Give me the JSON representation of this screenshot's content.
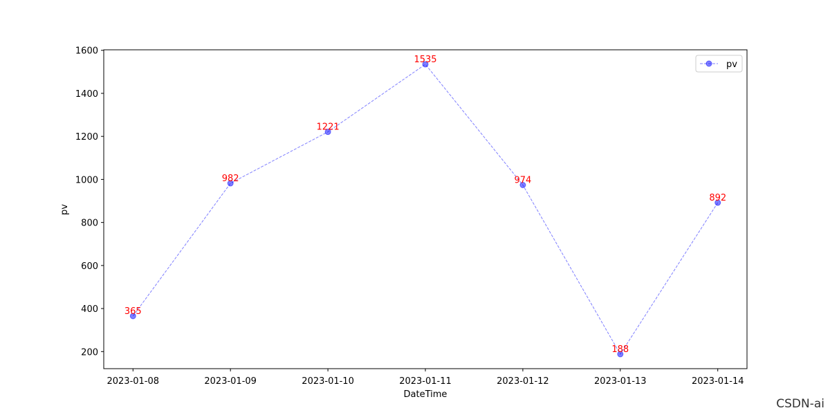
{
  "chart_data": {
    "type": "line",
    "x_label": "DateTime",
    "y_label": "pv",
    "categories": [
      "2023-01-08",
      "2023-01-09",
      "2023-01-10",
      "2023-01-11",
      "2023-01-12",
      "2023-01-13",
      "2023-01-14"
    ],
    "series": [
      {
        "name": "pv",
        "color": "#0000ff",
        "values": [
          365,
          982,
          1221,
          1535,
          974,
          188,
          892
        ]
      }
    ],
    "value_label_color": "#ff0000",
    "ylim": [
      120.65,
      1602.35
    ],
    "yticks": [
      200,
      400,
      600,
      800,
      1000,
      1200,
      1400,
      1600
    ],
    "legend": "upper right",
    "grid": false
  },
  "watermark": "CSDN-ai"
}
